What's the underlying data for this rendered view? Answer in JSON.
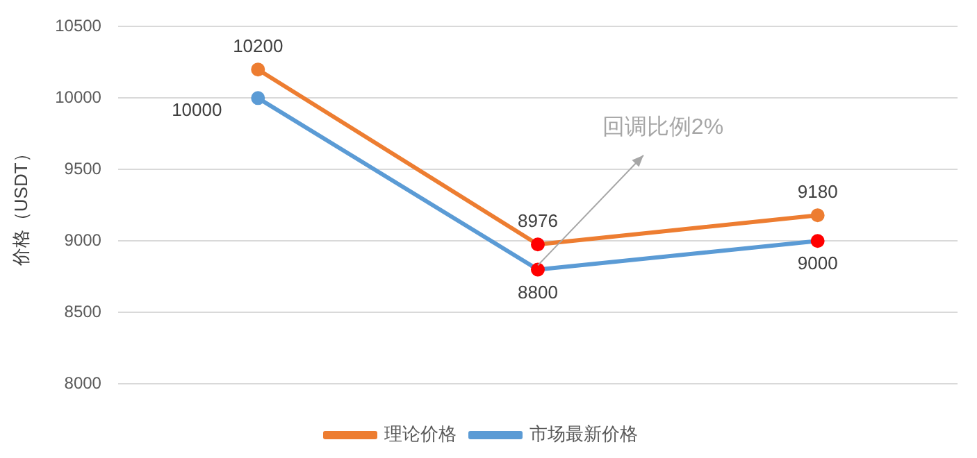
{
  "chart_data": {
    "type": "line",
    "ylabel": "价格（USDT）",
    "categories": [
      null,
      null,
      null
    ],
    "series": [
      {
        "name": "理论价格",
        "color": "#ed7d31",
        "values": [
          10200,
          8976,
          9180
        ],
        "colors": [
          "#ed7d31",
          "#ff0000",
          "#ed7d31"
        ]
      },
      {
        "name": "市场最新价格",
        "color": "#5b9bd5",
        "values": [
          10000,
          8800,
          9000
        ],
        "colors": [
          "#5b9bd5",
          "#ff0000",
          "#ff0000"
        ]
      }
    ],
    "ylim": [
      8000,
      10500
    ],
    "yticks": [
      8000,
      8500,
      9000,
      9500,
      10000,
      10500
    ],
    "grid": "y",
    "legend": "bottom",
    "marker": "circle",
    "line_style": "solid",
    "data_labels": true,
    "annotations": [
      "回调比例2%"
    ]
  }
}
